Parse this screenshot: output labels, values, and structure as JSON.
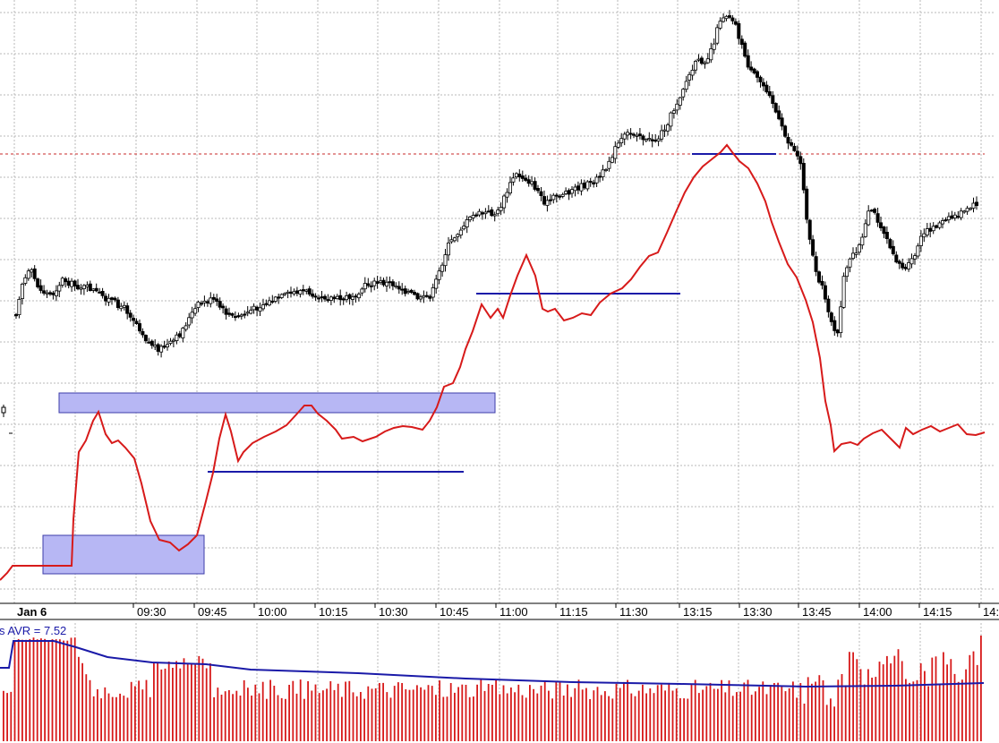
{
  "colors": {
    "background": "#ffffff",
    "grid": "#b9b9b9",
    "price_candle": "#000000",
    "oscillator_line": "#d71a1a",
    "support_line": "#1a1aa8",
    "zone_fill": "#b7b7f4",
    "zone_stroke": "#3c3ca8",
    "reference_dotted": "#c92a2a",
    "volume_bar": "#d71a1a",
    "volume_average": "#1a1aa8"
  },
  "chart_data": {
    "type": "line",
    "date_label": "Jan 6",
    "time_labels": [
      "09:30",
      "09:45",
      "10:00",
      "10:15",
      "10:30",
      "10:45",
      "11:00",
      "11:15",
      "11:30",
      "13:15",
      "13:30",
      "13:45",
      "14:00",
      "14:15",
      "14:"
    ],
    "grid": true,
    "legend": "none",
    "y_axis_labels": "not visible",
    "price_path": [
      [
        18,
        350
      ],
      [
        24,
        318
      ],
      [
        34,
        302
      ],
      [
        45,
        325
      ],
      [
        58,
        330
      ],
      [
        70,
        312
      ],
      [
        85,
        320
      ],
      [
        100,
        322
      ],
      [
        112,
        330
      ],
      [
        128,
        338
      ],
      [
        140,
        345
      ],
      [
        152,
        360
      ],
      [
        165,
        382
      ],
      [
        178,
        390
      ],
      [
        190,
        385
      ],
      [
        200,
        375
      ],
      [
        210,
        358
      ],
      [
        222,
        340
      ],
      [
        238,
        335
      ],
      [
        250,
        348
      ],
      [
        262,
        356
      ],
      [
        275,
        350
      ],
      [
        290,
        342
      ],
      [
        305,
        336
      ],
      [
        320,
        330
      ],
      [
        335,
        325
      ],
      [
        350,
        328
      ],
      [
        365,
        332
      ],
      [
        380,
        335
      ],
      [
        395,
        330
      ],
      [
        410,
        318
      ],
      [
        425,
        316
      ],
      [
        440,
        318
      ],
      [
        455,
        326
      ],
      [
        470,
        335
      ],
      [
        482,
        330
      ],
      [
        492,
        300
      ],
      [
        500,
        276
      ],
      [
        515,
        255
      ],
      [
        530,
        240
      ],
      [
        545,
        238
      ],
      [
        555,
        240
      ],
      [
        565,
        218
      ],
      [
        575,
        195
      ],
      [
        588,
        200
      ],
      [
        600,
        212
      ],
      [
        610,
        228
      ],
      [
        620,
        220
      ],
      [
        632,
        215
      ],
      [
        645,
        210
      ],
      [
        660,
        205
      ],
      [
        672,
        196
      ],
      [
        680,
        180
      ],
      [
        690,
        162
      ],
      [
        700,
        150
      ],
      [
        712,
        148
      ],
      [
        722,
        158
      ],
      [
        735,
        155
      ],
      [
        745,
        138
      ],
      [
        755,
        118
      ],
      [
        765,
        94
      ],
      [
        778,
        70
      ],
      [
        790,
        66
      ],
      [
        798,
        45
      ],
      [
        805,
        20
      ],
      [
        813,
        16
      ],
      [
        820,
        22
      ],
      [
        828,
        50
      ],
      [
        838,
        80
      ],
      [
        848,
        90
      ],
      [
        860,
        104
      ],
      [
        868,
        130
      ],
      [
        878,
        155
      ],
      [
        888,
        168
      ],
      [
        895,
        185
      ],
      [
        902,
        250
      ],
      [
        910,
        298
      ],
      [
        918,
        320
      ],
      [
        928,
        355
      ],
      [
        935,
        382
      ],
      [
        942,
        312
      ],
      [
        952,
        285
      ],
      [
        962,
        272
      ],
      [
        972,
        232
      ],
      [
        982,
        248
      ],
      [
        992,
        268
      ],
      [
        1002,
        292
      ],
      [
        1012,
        302
      ],
      [
        1022,
        285
      ],
      [
        1030,
        264
      ],
      [
        1040,
        255
      ],
      [
        1050,
        250
      ],
      [
        1060,
        245
      ],
      [
        1070,
        240
      ],
      [
        1080,
        236
      ],
      [
        1090,
        228
      ],
      [
        1096,
        228
      ]
    ],
    "oscillator_path": [
      [
        0,
        648
      ],
      [
        8,
        640
      ],
      [
        14,
        632
      ],
      [
        30,
        632
      ],
      [
        45,
        632
      ],
      [
        60,
        632
      ],
      [
        75,
        632
      ],
      [
        80,
        632
      ],
      [
        82,
        580
      ],
      [
        88,
        505
      ],
      [
        96,
        492
      ],
      [
        104,
        470
      ],
      [
        110,
        460
      ],
      [
        118,
        485
      ],
      [
        125,
        495
      ],
      [
        132,
        492
      ],
      [
        140,
        500
      ],
      [
        150,
        512
      ],
      [
        158,
        540
      ],
      [
        168,
        582
      ],
      [
        178,
        603
      ],
      [
        190,
        606
      ],
      [
        200,
        615
      ],
      [
        210,
        608
      ],
      [
        220,
        598
      ],
      [
        230,
        560
      ],
      [
        238,
        528
      ],
      [
        245,
        490
      ],
      [
        252,
        463
      ],
      [
        258,
        482
      ],
      [
        266,
        515
      ],
      [
        272,
        505
      ],
      [
        282,
        495
      ],
      [
        295,
        488
      ],
      [
        308,
        482
      ],
      [
        320,
        475
      ],
      [
        332,
        462
      ],
      [
        340,
        453
      ],
      [
        348,
        453
      ],
      [
        355,
        462
      ],
      [
        365,
        470
      ],
      [
        375,
        480
      ],
      [
        382,
        490
      ],
      [
        395,
        488
      ],
      [
        405,
        493
      ],
      [
        420,
        488
      ],
      [
        430,
        482
      ],
      [
        440,
        478
      ],
      [
        450,
        476
      ],
      [
        460,
        477
      ],
      [
        472,
        480
      ],
      [
        480,
        470
      ],
      [
        488,
        455
      ],
      [
        496,
        432
      ],
      [
        506,
        428
      ],
      [
        514,
        410
      ],
      [
        520,
        390
      ],
      [
        528,
        370
      ],
      [
        538,
        340
      ],
      [
        548,
        355
      ],
      [
        556,
        345
      ],
      [
        562,
        355
      ],
      [
        570,
        330
      ],
      [
        578,
        308
      ],
      [
        588,
        285
      ],
      [
        598,
        308
      ],
      [
        606,
        345
      ],
      [
        612,
        348
      ],
      [
        620,
        345
      ],
      [
        630,
        358
      ],
      [
        640,
        355
      ],
      [
        650,
        350
      ],
      [
        660,
        352
      ],
      [
        670,
        338
      ],
      [
        682,
        328
      ],
      [
        695,
        322
      ],
      [
        705,
        312
      ],
      [
        715,
        298
      ],
      [
        725,
        286
      ],
      [
        735,
        282
      ],
      [
        745,
        260
      ],
      [
        755,
        237
      ],
      [
        765,
        215
      ],
      [
        775,
        198
      ],
      [
        785,
        186
      ],
      [
        795,
        178
      ],
      [
        805,
        170
      ],
      [
        812,
        162
      ],
      [
        818,
        170
      ],
      [
        826,
        180
      ],
      [
        836,
        188
      ],
      [
        846,
        205
      ],
      [
        855,
        225
      ],
      [
        862,
        248
      ],
      [
        870,
        270
      ],
      [
        880,
        295
      ],
      [
        890,
        310
      ],
      [
        900,
        335
      ],
      [
        908,
        360
      ],
      [
        916,
        400
      ],
      [
        922,
        448
      ],
      [
        928,
        475
      ],
      [
        932,
        504
      ],
      [
        940,
        496
      ],
      [
        950,
        494
      ],
      [
        958,
        497
      ],
      [
        965,
        490
      ],
      [
        975,
        484
      ],
      [
        985,
        480
      ],
      [
        995,
        490
      ],
      [
        1005,
        500
      ],
      [
        1012,
        478
      ],
      [
        1020,
        485
      ],
      [
        1030,
        480
      ],
      [
        1040,
        476
      ],
      [
        1050,
        482
      ],
      [
        1060,
        478
      ],
      [
        1070,
        474
      ],
      [
        1080,
        485
      ],
      [
        1090,
        486
      ],
      [
        1100,
        483
      ]
    ],
    "candles": [],
    "volume_bars": [],
    "volume_average_label": "s AVR = 7.52",
    "volume_average_value": 7.52
  }
}
